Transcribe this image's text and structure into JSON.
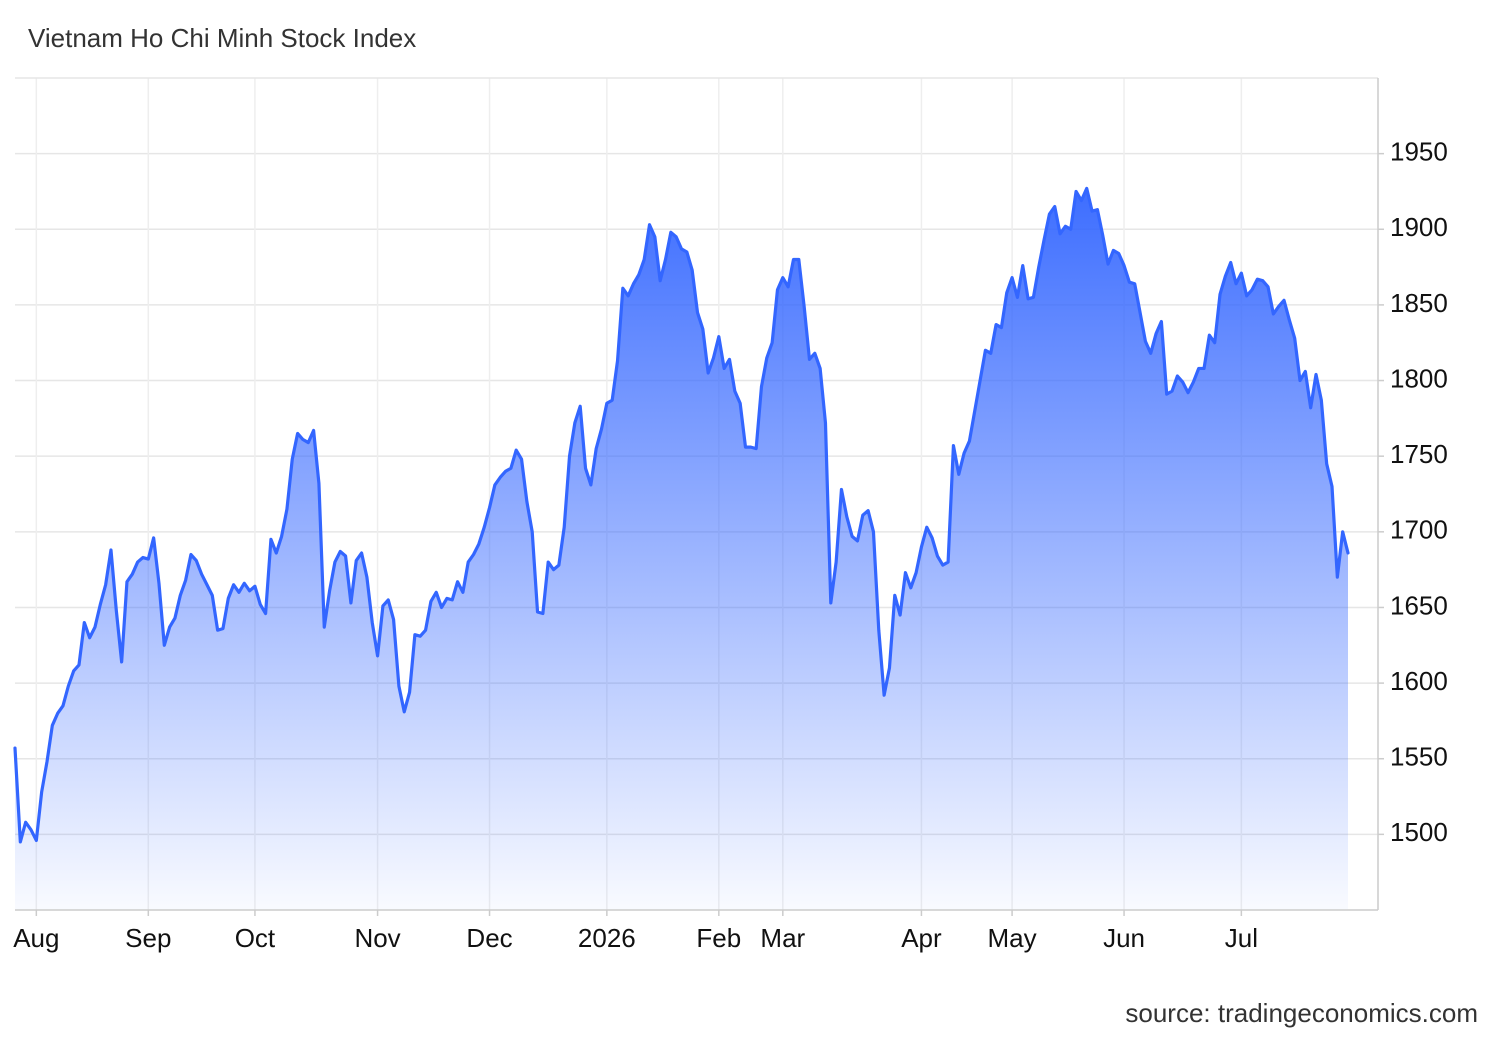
{
  "chart_data": {
    "type": "area",
    "title": "Vietnam Ho Chi Minh Stock Index",
    "source": "source: tradingeconomics.com",
    "color": "#3366ff",
    "grid": true,
    "ylim": [
      1450,
      2000
    ],
    "yticks": [
      1500,
      1550,
      1600,
      1650,
      1700,
      1750,
      1800,
      1850,
      1900,
      1950
    ],
    "categories": [
      null,
      null,
      null,
      null,
      "Aug",
      null,
      null,
      null,
      null,
      null,
      null,
      null,
      null,
      null,
      null,
      null,
      null,
      null,
      null,
      null,
      null,
      null,
      null,
      null,
      null,
      "Sep",
      null,
      null,
      null,
      null,
      null,
      null,
      null,
      null,
      null,
      null,
      null,
      null,
      null,
      null,
      null,
      null,
      null,
      null,
      null,
      "Oct",
      null,
      null,
      null,
      null,
      null,
      null,
      null,
      null,
      null,
      null,
      null,
      null,
      null,
      null,
      null,
      null,
      null,
      null,
      null,
      null,
      null,
      null,
      "Nov",
      null,
      null,
      null,
      null,
      null,
      null,
      null,
      null,
      null,
      null,
      null,
      null,
      null,
      null,
      null,
      null,
      null,
      null,
      null,
      null,
      "Dec",
      null,
      null,
      null,
      null,
      null,
      null,
      null,
      null,
      null,
      null,
      null,
      null,
      null,
      null,
      null,
      null,
      null,
      null,
      null,
      null,
      null,
      "2026",
      null,
      null,
      null,
      null,
      null,
      null,
      null,
      null,
      null,
      null,
      null,
      null,
      null,
      null,
      null,
      null,
      null,
      null,
      null,
      null,
      "Feb",
      null,
      null,
      null,
      null,
      null,
      null,
      null,
      null,
      null,
      null,
      null,
      "Mar",
      null,
      null,
      null,
      null,
      null,
      null,
      null,
      null,
      null,
      null,
      null,
      null,
      null,
      null,
      null,
      null,
      null,
      null,
      null,
      null,
      null,
      null,
      null,
      null,
      null,
      "Apr",
      null,
      null,
      null,
      null,
      null,
      null,
      null,
      null,
      null,
      null,
      null,
      null,
      null,
      null,
      null,
      null,
      "May",
      null,
      null,
      null,
      null,
      null,
      null,
      null,
      null,
      null,
      null,
      null,
      null,
      null,
      null,
      null,
      null,
      null,
      null,
      null,
      null,
      "Jun",
      null,
      null,
      null,
      null,
      null,
      null,
      null,
      null,
      null,
      null,
      null,
      null,
      null,
      null,
      null,
      null,
      null,
      null,
      null,
      null,
      null,
      "Jul",
      null,
      null,
      null,
      null,
      null,
      null,
      null,
      null,
      null,
      null,
      null,
      null,
      null,
      null,
      null,
      null,
      null,
      null,
      null,
      null
    ],
    "values": [
      1557,
      1495,
      1508,
      1503,
      1496,
      1528,
      1548,
      1572,
      1580,
      1585,
      1598,
      1608,
      1612,
      1640,
      1630,
      1637,
      1652,
      1665,
      1688,
      1648,
      1614,
      1667,
      1672,
      1680,
      1683,
      1682,
      1696,
      1666,
      1625,
      1637,
      1643,
      1658,
      1668,
      1685,
      1681,
      1672,
      1665,
      1658,
      1635,
      1636,
      1656,
      1665,
      1660,
      1666,
      1661,
      1664,
      1652,
      1646,
      1695,
      1686,
      1697,
      1715,
      1748,
      1765,
      1761,
      1759,
      1767,
      1732,
      1637,
      1661,
      1680,
      1687,
      1684,
      1653,
      1681,
      1686,
      1670,
      1640,
      1618,
      1651,
      1655,
      1642,
      1598,
      1581,
      1594,
      1632,
      1631,
      1635,
      1654,
      1660,
      1650,
      1656,
      1655,
      1667,
      1660,
      1680,
      1685,
      1692,
      1703,
      1716,
      1731,
      1736,
      1740,
      1742,
      1754,
      1748,
      1720,
      1700,
      1647,
      1646,
      1680,
      1675,
      1678,
      1703,
      1750,
      1772,
      1783,
      1742,
      1731,
      1755,
      1768,
      1785,
      1787,
      1813,
      1861,
      1856,
      1864,
      1870,
      1880,
      1903,
      1895,
      1866,
      1880,
      1898,
      1895,
      1887,
      1885,
      1873,
      1845,
      1834,
      1805,
      1815,
      1829,
      1808,
      1814,
      1793,
      1785,
      1756,
      1756,
      1755,
      1796,
      1815,
      1825,
      1860,
      1868,
      1862,
      1880,
      1880,
      1849,
      1814,
      1818,
      1808,
      1772,
      1653,
      1680,
      1728,
      1710,
      1697,
      1694,
      1711,
      1714,
      1700,
      1635,
      1592,
      1610,
      1658,
      1645,
      1673,
      1663,
      1673,
      1690,
      1703,
      1696,
      1684,
      1678,
      1680,
      1757,
      1738,
      1752,
      1760,
      1780,
      1800,
      1820,
      1818,
      1837,
      1835,
      1858,
      1868,
      1855,
      1876,
      1854,
      1855,
      1875,
      1893,
      1910,
      1915,
      1897,
      1902,
      1900,
      1925,
      1919,
      1927,
      1912,
      1913,
      1896,
      1877,
      1886,
      1884,
      1876,
      1865,
      1864,
      1845,
      1826,
      1818,
      1831,
      1839,
      1791,
      1793,
      1803,
      1799,
      1792,
      1799,
      1808,
      1808,
      1830,
      1825,
      1857,
      1869,
      1878,
      1864,
      1871,
      1856,
      1860,
      1867,
      1866,
      1862,
      1844,
      1849,
      1853,
      1840,
      1828,
      1800,
      1806,
      1782,
      1804,
      1787,
      1745,
      1730,
      1670,
      1700,
      1686
    ]
  }
}
